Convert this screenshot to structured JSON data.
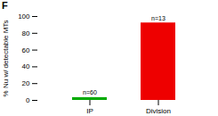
{
  "chart_data": {
    "type": "bar",
    "title": "F",
    "categories": [
      "IP",
      "Division"
    ],
    "values": [
      3.33,
      92.31
    ],
    "colors": [
      "#00aa00",
      "#ee0000"
    ],
    "annotations": [
      "n=60",
      "n=13"
    ],
    "ylabel": "% Nu w/ detectable MTs",
    "ylim": [
      0,
      100
    ],
    "yticks": [
      0,
      20,
      40,
      60,
      80,
      100
    ],
    "grid": false
  }
}
